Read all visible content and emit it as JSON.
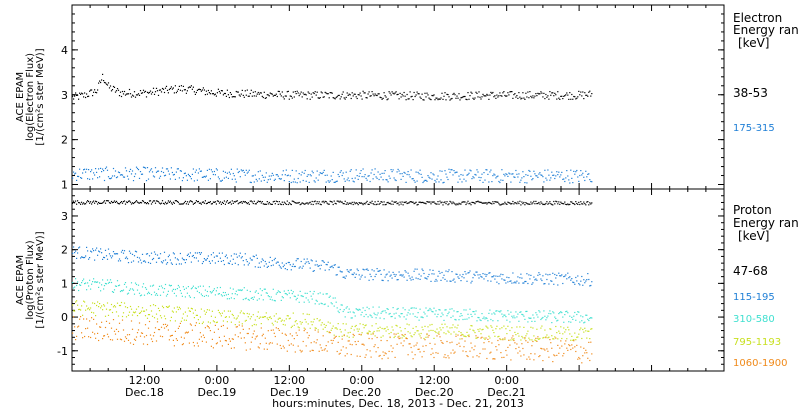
{
  "chart_data": [
    {
      "type": "scatter",
      "panel": "electron",
      "ylabel_lines": [
        "ACE EPAM",
        "log(Electron Flux)",
        "[1/(cm²s ster MeV)]"
      ],
      "ylim": [
        0.9,
        5.0
      ],
      "yticks": [
        1,
        2,
        3,
        4
      ],
      "legend_title": [
        "Electron",
        "Energy ran"
      ],
      "legend_unit": "[keV]",
      "series": [
        {
          "name": "38-53",
          "color": "#000000",
          "baseline": 3.02,
          "points": [
            [
              0,
              2.95
            ],
            [
              2,
              3.0
            ],
            [
              4,
              3.1
            ],
            [
              5,
              3.42
            ],
            [
              6,
              3.18
            ],
            [
              8,
              3.05
            ],
            [
              12,
              3.05
            ],
            [
              18,
              3.15
            ],
            [
              24,
              3.05
            ],
            [
              36,
              3.0
            ],
            [
              48,
              3.0
            ],
            [
              60,
              2.98
            ],
            [
              72,
              3.0
            ],
            [
              84,
              3.0
            ],
            [
              86,
              3.02
            ]
          ]
        },
        {
          "name": "175-315",
          "color": "#1f7fd6",
          "baseline": 1.22,
          "points": [
            [
              0,
              1.25
            ],
            [
              12,
              1.25
            ],
            [
              24,
              1.22
            ],
            [
              36,
              1.2
            ],
            [
              48,
              1.22
            ],
            [
              60,
              1.2
            ],
            [
              72,
              1.2
            ],
            [
              86,
              1.2
            ]
          ]
        }
      ]
    },
    {
      "type": "scatter",
      "panel": "proton",
      "ylabel_lines": [
        "ACE EPAM",
        "log(Proton Flux)",
        "[1/(cm²s ster MeV)]"
      ],
      "ylim": [
        -1.6,
        3.8
      ],
      "yticks": [
        -1,
        0,
        1,
        2,
        3
      ],
      "legend_title": [
        "Proton",
        "Energy ran"
      ],
      "legend_unit": "[keV]",
      "series": [
        {
          "name": "47-68",
          "color": "#000000",
          "points": [
            [
              0,
              3.42
            ],
            [
              24,
              3.42
            ],
            [
              48,
              3.4
            ],
            [
              86,
              3.4
            ]
          ]
        },
        {
          "name": "115-195",
          "color": "#1f7fd6",
          "points": [
            [
              0,
              1.95
            ],
            [
              6,
              1.85
            ],
            [
              12,
              1.78
            ],
            [
              24,
              1.75
            ],
            [
              28,
              1.75
            ],
            [
              30,
              1.68
            ],
            [
              40,
              1.55
            ],
            [
              43,
              1.5
            ],
            [
              45,
              1.3
            ],
            [
              60,
              1.25
            ],
            [
              72,
              1.18
            ],
            [
              86,
              1.12
            ]
          ]
        },
        {
          "name": "310-580",
          "color": "#40e0d0",
          "points": [
            [
              0,
              1.0
            ],
            [
              6,
              0.95
            ],
            [
              12,
              0.82
            ],
            [
              24,
              0.75
            ],
            [
              40,
              0.6
            ],
            [
              43,
              0.5
            ],
            [
              45,
              0.15
            ],
            [
              60,
              0.1
            ],
            [
              72,
              0.05
            ],
            [
              86,
              0.0
            ]
          ]
        },
        {
          "name": "795-1193",
          "color": "#c8e020",
          "points": [
            [
              0,
              0.3
            ],
            [
              12,
              0.2
            ],
            [
              24,
              0.0
            ],
            [
              40,
              -0.1
            ],
            [
              45,
              -0.4
            ],
            [
              60,
              -0.4
            ],
            [
              72,
              -0.45
            ],
            [
              86,
              -0.5
            ]
          ]
        },
        {
          "name": "1060-1900",
          "color": "#f08a1a",
          "points": [
            [
              0,
              -0.3
            ],
            [
              12,
              -0.45
            ],
            [
              24,
              -0.55
            ],
            [
              40,
              -0.7
            ],
            [
              45,
              -0.85
            ],
            [
              60,
              -0.85
            ],
            [
              72,
              -0.9
            ],
            [
              86,
              -1.0
            ]
          ]
        }
      ]
    }
  ],
  "x_axis": {
    "range_hours": [
      0,
      108
    ],
    "ticks": [
      {
        "hours": 12,
        "time": "12:00",
        "date": "Dec.18"
      },
      {
        "hours": 24,
        "time": "0:00",
        "date": "Dec.19"
      },
      {
        "hours": 36,
        "time": "12:00",
        "date": "Dec.19"
      },
      {
        "hours": 48,
        "time": "0:00",
        "date": "Dec.20"
      },
      {
        "hours": 60,
        "time": "12:00",
        "date": "Dec.20"
      },
      {
        "hours": 72,
        "time": "0:00",
        "date": "Dec.21"
      }
    ],
    "label": "hours:minutes, Dec. 18, 2013 - Dec. 21, 2013"
  }
}
